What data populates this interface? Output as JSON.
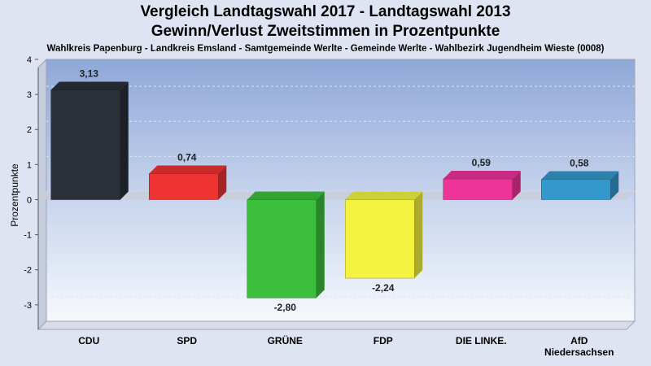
{
  "chart_data": {
    "type": "bar",
    "title": "Vergleich Landtagswahl 2017 - Landtagswahl 2013",
    "subtitle": "Gewinn/Verlust Zweitstimmen in Prozentpunkte",
    "caption": "Wahlkreis Papenburg - Landkreis Emsland - Samtgemeinde Werlte - Gemeinde Werlte - Wahlbezirk Jugendheim Wieste (0008)",
    "ylabel": "Prozentpunkte",
    "xlabel": "",
    "ylim": [
      -3.7,
      4
    ],
    "yticks": [
      "4",
      "3",
      "2",
      "1",
      "0",
      "-1",
      "-2",
      "-3"
    ],
    "categories": [
      [
        "CDU"
      ],
      [
        "SPD"
      ],
      [
        "GRÜNE"
      ],
      [
        "FDP"
      ],
      [
        "DIE LINKE."
      ],
      [
        "AfD",
        "Niedersachsen"
      ]
    ],
    "values": [
      3.13,
      0.74,
      -2.8,
      -2.24,
      0.59,
      0.58
    ],
    "value_labels": [
      "3,13",
      "0,74",
      "-2,80",
      "-2,24",
      "0,59",
      "0,58"
    ],
    "colors": [
      "#2a2f38",
      "#ee3333",
      "#3cc03c",
      "#f4f440",
      "#ee3399",
      "#3399cc"
    ],
    "grid": true
  }
}
